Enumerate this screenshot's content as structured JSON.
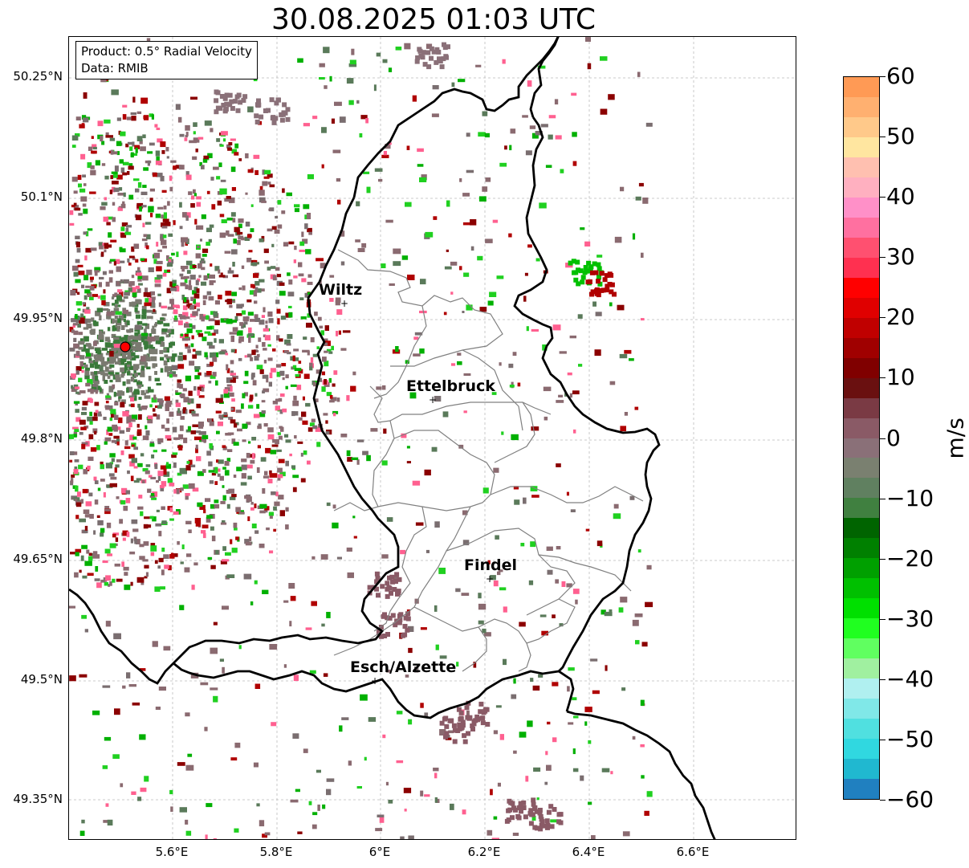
{
  "title": "30.08.2025 01:03 UTC",
  "info_box": {
    "product": "Product: 0.5° Radial Velocity",
    "data": "Data: RMIB"
  },
  "axes": {
    "lat_labels": [
      "50.25°N",
      "50.1°N",
      "49.95°N",
      "49.8°N",
      "49.65°N",
      "49.5°N",
      "49.35°N"
    ],
    "lon_labels": [
      "5.6°E",
      "5.8°E",
      "6°E",
      "6.2°E",
      "6.4°E",
      "6.6°E"
    ],
    "grid": true
  },
  "cities": [
    {
      "name": "Wiltz"
    },
    {
      "name": "Ettelbruck"
    },
    {
      "name": "Findel"
    },
    {
      "name": "Esch/Alzette"
    }
  ],
  "radar_site_color": "#ff0000",
  "colorbar": {
    "unit": "m/s",
    "ticks": [
      "60",
      "50",
      "40",
      "30",
      "20",
      "10",
      "0",
      "−10",
      "−20",
      "−30",
      "−40",
      "−50",
      "−60"
    ],
    "colors_top_to_bottom": [
      "#ff9a55",
      "#ffb070",
      "#ffc98a",
      "#ffe6a0",
      "#ffc0b0",
      "#ffb0c0",
      "#ff90c8",
      "#ff70a0",
      "#ff5070",
      "#ff3050",
      "#ff0000",
      "#e00000",
      "#c00000",
      "#a00000",
      "#800000",
      "#6a1010",
      "#7a3a44",
      "#8a5a66",
      "#8a7078",
      "#7a8070",
      "#608060",
      "#408040",
      "#006400",
      "#008000",
      "#00a000",
      "#00c000",
      "#00e000",
      "#20ff20",
      "#60ff60",
      "#a0f0a0",
      "#b0f0f0",
      "#80e8e8",
      "#50e0e0",
      "#30d8e0",
      "#20b8d0",
      "#2080c0"
    ]
  },
  "legend_colors": {
    "receding": "#8b0000",
    "approaching": "#00b000",
    "near_zero": "#8a6a70",
    "border": "#000000",
    "canton": "#808080"
  }
}
